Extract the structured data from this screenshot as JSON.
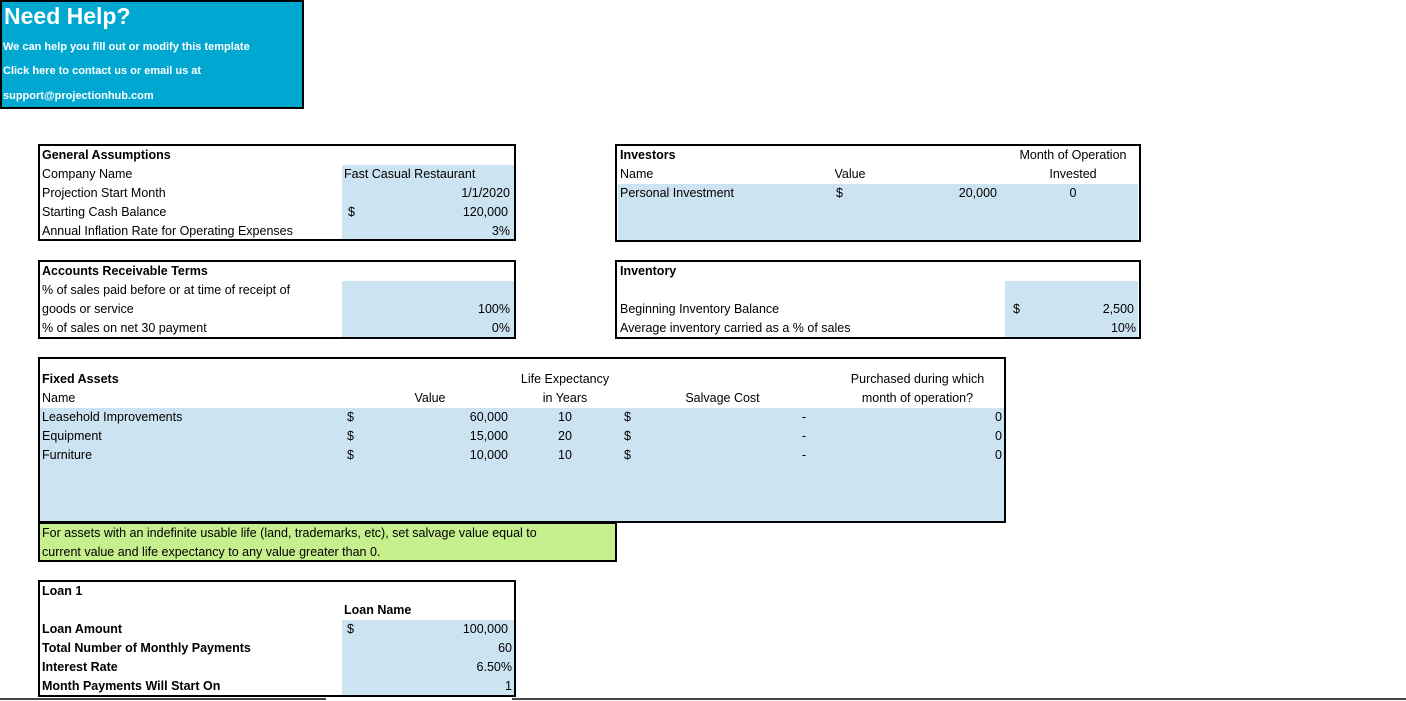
{
  "help": {
    "title": "Need Help?",
    "line1": "We can help you fill out or modify this template",
    "line2": "Click here to contact us or email us at",
    "line3": "support@projectionhub.com"
  },
  "general": {
    "header": "General Assumptions",
    "rows": [
      {
        "label": "Company Name",
        "value": "Fast Casual Restaurant"
      },
      {
        "label": "Projection Start Month",
        "value": "1/1/2020"
      },
      {
        "label": "Starting Cash Balance",
        "currency": "$",
        "value": "120,000"
      },
      {
        "label": "Annual Inflation Rate for Operating Expenses",
        "value": "3%"
      }
    ]
  },
  "investors": {
    "header": "Investors",
    "col_name": "Name",
    "col_value": "Value",
    "col_month_1": "Month of Operation",
    "col_month_2": "Invested",
    "row": {
      "name": "Personal Investment",
      "currency": "$",
      "value": "20,000",
      "month": "0"
    }
  },
  "ar": {
    "header": "Accounts Receivable Terms",
    "row1_label_a": "% of sales paid before or at time of receipt of",
    "row1_label_b": "goods or service",
    "row1_value": "100%",
    "row2_label": "% of sales on net 30 payment",
    "row2_value": "0%"
  },
  "inventory": {
    "header": "Inventory",
    "row1_label": "Beginning Inventory Balance",
    "row1_currency": "$",
    "row1_value": "2,500",
    "row2_label": "Average inventory carried as a % of sales",
    "row2_value": "10%"
  },
  "fixed_assets": {
    "header": "Fixed Assets",
    "col_name": "Name",
    "col_value": "Value",
    "col_life_1": "Life Expectancy",
    "col_life_2": "in Years",
    "col_salvage": "Salvage Cost",
    "col_purchased_1": "Purchased during which",
    "col_purchased_2": "month of operation?",
    "rows": [
      {
        "name": "Leasehold Improvements",
        "currency": "$",
        "value": "60,000",
        "life": "10",
        "salvage_currency": "$",
        "salvage": "-",
        "month": "0"
      },
      {
        "name": "Equipment",
        "currency": "$",
        "value": "15,000",
        "life": "20",
        "salvage_currency": "$",
        "salvage": "-",
        "month": "0"
      },
      {
        "name": "Furniture",
        "currency": "$",
        "value": "10,000",
        "life": "10",
        "salvage_currency": "$",
        "salvage": "-",
        "month": "0"
      }
    ],
    "note_1": "For assets with an indefinite usable life (land, trademarks, etc), set salvage value equal to",
    "note_2": "current value and life expectancy to any value greater than 0."
  },
  "loan": {
    "header": "Loan 1",
    "name_label": "Loan Name",
    "rows": [
      {
        "label": "Loan Amount",
        "currency": "$",
        "value": "100,000"
      },
      {
        "label": "Total Number of Monthly Payments",
        "value": "60"
      },
      {
        "label": "Interest Rate",
        "value": "6.50%"
      },
      {
        "label": "Month Payments Will Start On",
        "value": "1"
      }
    ]
  }
}
